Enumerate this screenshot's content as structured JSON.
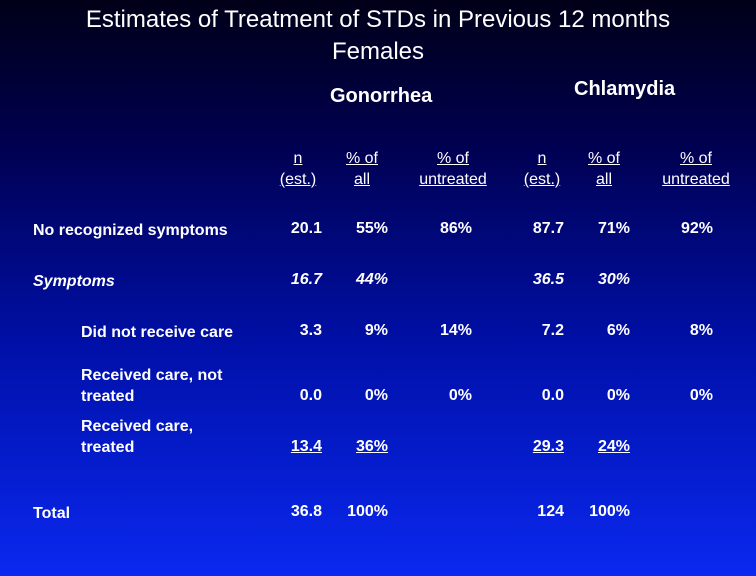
{
  "title": {
    "line1": "Estimates of Treatment of STDs in Previous 12 months",
    "line2": "Females"
  },
  "groups": {
    "gonorrhea": "Gonorrhea",
    "chlamydia": "Chlamydia"
  },
  "columns": [
    {
      "l1": "n",
      "l2": "(est.)"
    },
    {
      "l1": "% of",
      "l2": "all"
    },
    {
      "l1": "% of",
      "l2": "untreated"
    },
    {
      "l1": "n",
      "l2": "(est.)"
    },
    {
      "l1": "% of",
      "l2": "all"
    },
    {
      "l1": "% of",
      "l2": "untreated"
    }
  ],
  "rows": [
    {
      "l1": "No recognized symptoms",
      "l2": "",
      "cells": [
        "20.1",
        "55%",
        "86%",
        "87.7",
        "71%",
        "92%"
      ]
    },
    {
      "l1": "Symptoms",
      "l2": "",
      "cells": [
        "16.7",
        "44%",
        "",
        "36.5",
        "30%",
        ""
      ]
    },
    {
      "l1": "Did not receive care",
      "l2": "",
      "cells": [
        "3.3",
        "9%",
        "14%",
        "7.2",
        "6%",
        "8%"
      ]
    },
    {
      "l1": "Received care, not",
      "l2": "treated",
      "cells": [
        "0.0",
        "0%",
        "0%",
        "0.0",
        "0%",
        "0%"
      ]
    },
    {
      "l1": "Received care,",
      "l2": "treated",
      "cells": [
        "13.4",
        "36%",
        "",
        "29.3",
        "24%",
        ""
      ]
    },
    {
      "l1": "Total",
      "l2": "",
      "cells": [
        "36.8",
        "100%",
        "",
        "124",
        "100%",
        ""
      ]
    }
  ]
}
